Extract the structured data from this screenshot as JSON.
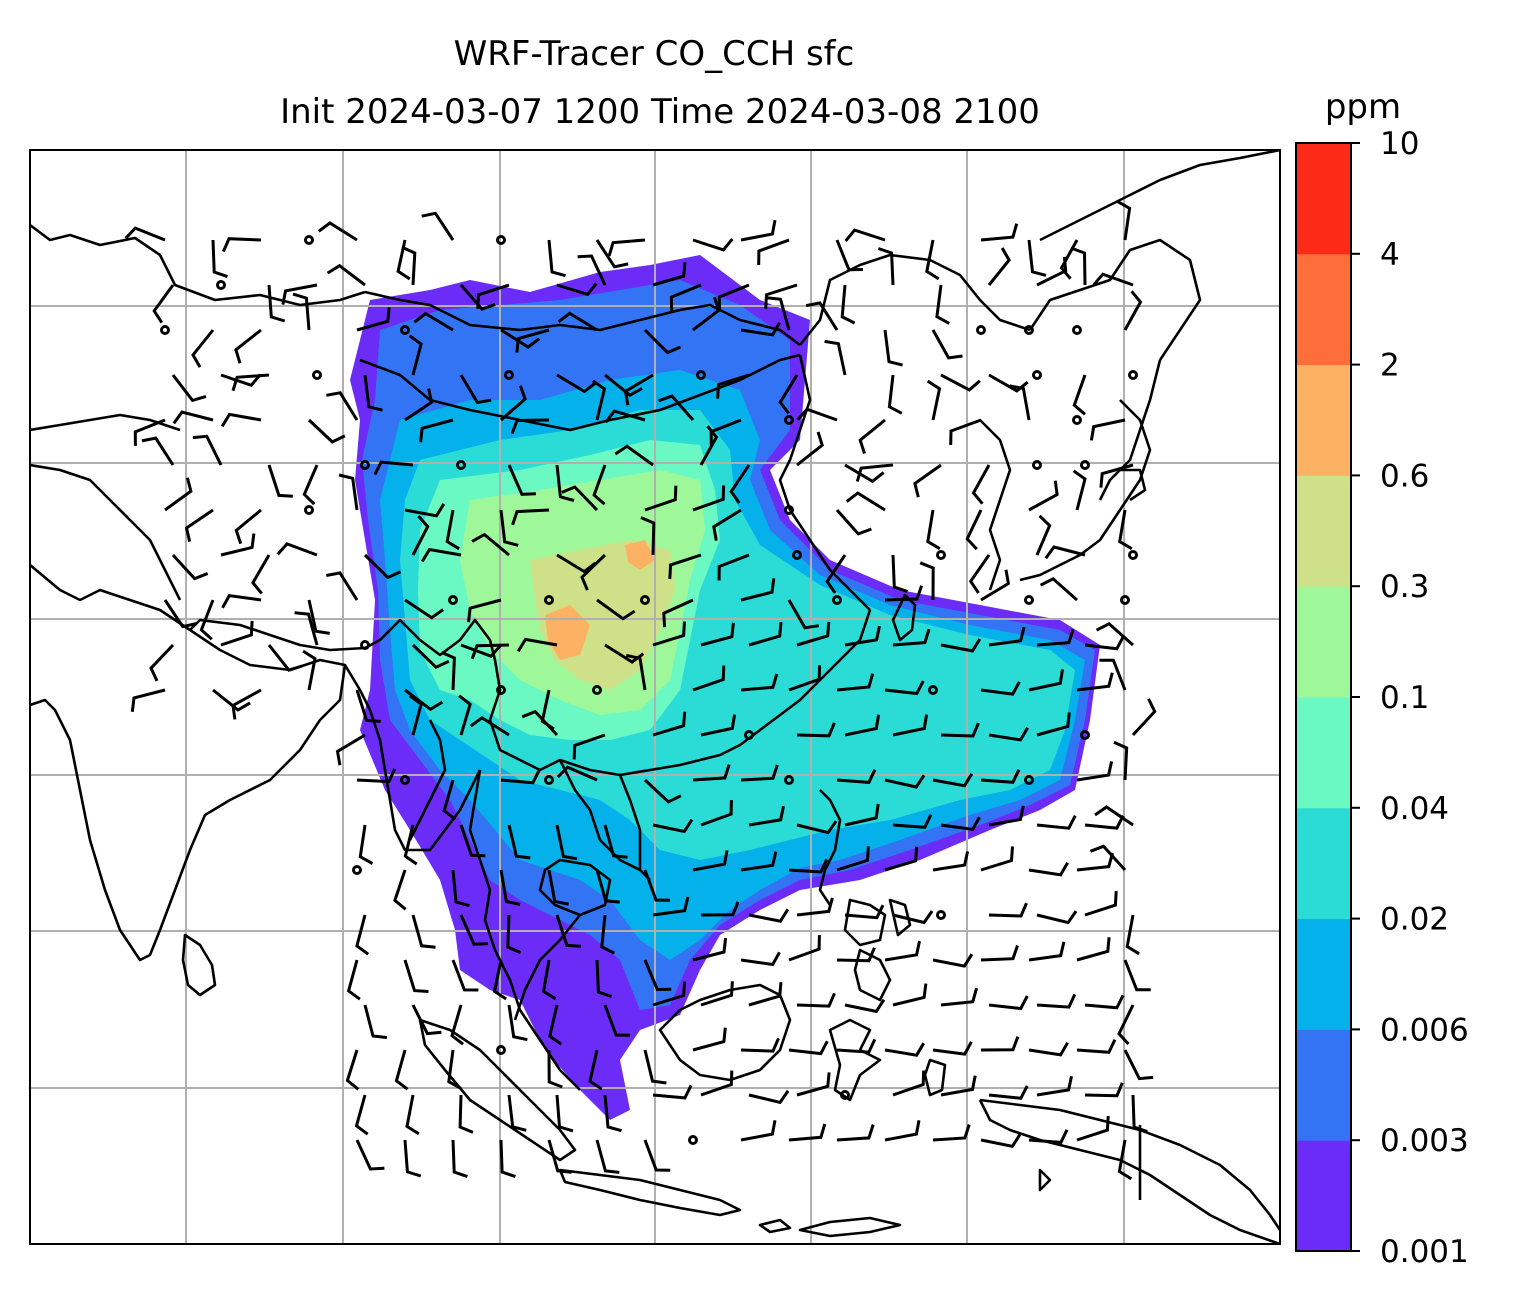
{
  "title": {
    "line1": "WRF-Tracer CO_CCH sfc",
    "line2": "Init 2024-03-07 1200 Time 2024-03-08 2100"
  },
  "colorbar": {
    "unit": "ppm",
    "ticks": [
      "0.001",
      "0.003",
      "0.006",
      "0.02",
      "0.04",
      "0.1",
      "0.3",
      "0.6",
      "2",
      "4",
      "10"
    ],
    "colors": [
      "#6a2cf6",
      "#3374f4",
      "#05b1ea",
      "#2bdcd6",
      "#6bf9c3",
      "#9ef89a",
      "#cfe188",
      "#fdb162",
      "#fe6e3a",
      "#fd2a17"
    ]
  },
  "map": {
    "gridlines": true,
    "overlays": [
      "coastlines",
      "wind-barbs",
      "co-tracer-fill"
    ]
  }
}
